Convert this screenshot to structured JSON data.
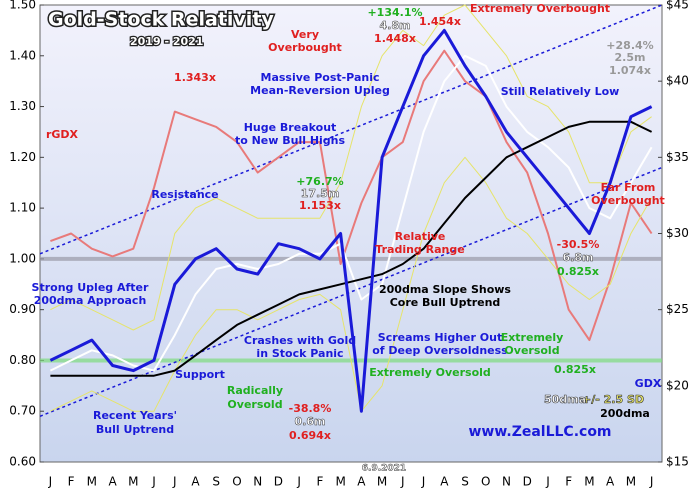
{
  "chart_data": {
    "type": "line",
    "title": "Gold-Stock Relativity",
    "subtitle": "2019 - 2021",
    "categories": [
      "J",
      "F",
      "M",
      "A",
      "M",
      "J",
      "J",
      "A",
      "S",
      "O",
      "N",
      "D",
      "J",
      "F",
      "M",
      "A",
      "M",
      "J",
      "J",
      "A",
      "S",
      "O",
      "N",
      "D",
      "J",
      "F",
      "M",
      "A",
      "M",
      "J"
    ],
    "ylim": [
      0.6,
      1.5
    ],
    "yticks": [
      {
        "value": 0.6,
        "label": "0.60"
      },
      {
        "value": 0.7,
        "label": "0.70"
      },
      {
        "value": 0.8,
        "label": "0.80"
      },
      {
        "value": 0.9,
        "label": "0.90"
      },
      {
        "value": 1.0,
        "label": "1.00"
      },
      {
        "value": 1.1,
        "label": "1.10"
      },
      {
        "value": 1.2,
        "label": "1.20"
      },
      {
        "value": 1.3,
        "label": "1.30"
      },
      {
        "value": 1.4,
        "label": "1.40"
      },
      {
        "value": 1.5,
        "label": "1.50"
      }
    ],
    "y2lim": [
      15,
      45
    ],
    "y2ticks": [
      {
        "value": 15,
        "label": "$15"
      },
      {
        "value": 20,
        "label": "$20"
      },
      {
        "value": 25,
        "label": "$25"
      },
      {
        "value": 30,
        "label": "$30"
      },
      {
        "value": 35,
        "label": "$35"
      },
      {
        "value": 40,
        "label": "$40"
      },
      {
        "value": 45,
        "label": "$45"
      }
    ],
    "series": [
      {
        "name": "GDX",
        "color": "#e87a7a",
        "axis": "y2",
        "values": [
          29.5,
          30,
          29,
          28.5,
          29,
          33,
          38,
          37.5,
          37,
          36,
          34,
          35,
          36,
          36,
          28,
          32,
          35,
          36,
          40,
          42,
          40,
          39,
          36,
          34,
          30,
          25,
          23,
          27,
          32,
          30
        ]
      },
      {
        "name": "+/- 2.5 SD",
        "color": "#e6e46a",
        "upper": [
          0.9,
          0.92,
          0.9,
          0.88,
          0.86,
          0.88,
          1.05,
          1.1,
          1.12,
          1.1,
          1.08,
          1.08,
          1.08,
          1.08,
          1.15,
          1.3,
          1.4,
          1.45,
          1.42,
          1.48,
          1.5,
          1.45,
          1.4,
          1.32,
          1.3,
          1.25,
          1.15,
          1.15,
          1.25,
          1.28
        ],
        "lower": [
          0.7,
          0.72,
          0.74,
          0.72,
          0.7,
          0.7,
          0.78,
          0.85,
          0.9,
          0.9,
          0.88,
          0.9,
          0.92,
          0.93,
          0.9,
          0.7,
          0.75,
          0.9,
          1.05,
          1.15,
          1.2,
          1.15,
          1.08,
          1.05,
          1.0,
          0.95,
          0.92,
          0.95,
          1.05,
          1.12
        ]
      },
      {
        "name": "50dma",
        "color": "#ffffff",
        "values": [
          0.78,
          0.8,
          0.82,
          0.81,
          0.79,
          0.78,
          0.85,
          0.93,
          0.98,
          0.99,
          0.98,
          0.99,
          1.01,
          1.01,
          1.03,
          0.92,
          0.95,
          1.1,
          1.25,
          1.35,
          1.4,
          1.38,
          1.3,
          1.25,
          1.22,
          1.18,
          1.1,
          1.08,
          1.15,
          1.22
        ]
      },
      {
        "name": "200dma",
        "color": "#000000",
        "values": [
          0.77,
          0.77,
          0.77,
          0.77,
          0.77,
          0.77,
          0.78,
          0.81,
          0.84,
          0.87,
          0.89,
          0.91,
          0.93,
          0.94,
          0.95,
          0.96,
          0.97,
          0.99,
          1.02,
          1.07,
          1.12,
          1.16,
          1.2,
          1.22,
          1.24,
          1.26,
          1.27,
          1.27,
          1.27,
          1.25
        ]
      },
      {
        "name": "rGDX",
        "color": "#1a1ad8",
        "values": [
          0.8,
          0.82,
          0.84,
          0.79,
          0.78,
          0.8,
          0.95,
          1.0,
          1.02,
          0.98,
          0.97,
          1.03,
          1.02,
          1.0,
          1.05,
          0.7,
          1.2,
          1.3,
          1.4,
          1.45,
          1.38,
          1.32,
          1.25,
          1.2,
          1.15,
          1.1,
          1.05,
          1.15,
          1.28,
          1.3
        ]
      }
    ],
    "trendlines": [
      {
        "name": "Resistance",
        "color": "#1a1ad8",
        "values": [
          1.01,
          1.5
        ]
      },
      {
        "name": "Support",
        "color": "#1a1ad8",
        "values": [
          0.69,
          1.18
        ]
      }
    ],
    "hlines": [
      {
        "value": 1.0,
        "color": "#9a9aa8"
      },
      {
        "value": 0.8,
        "color": "#7fdc7f"
      }
    ],
    "annotations": [
      "1.343x",
      "Very",
      "Overbought",
      "+134.1%",
      "4.8m",
      "1.448x",
      "1.454x",
      "Extremely Overbought",
      "+28.4%",
      "2.5m",
      "1.074x",
      "Still Relatively Low",
      "Massive Post-Panic",
      "Mean-Reversion Upleg",
      "Huge Breakout",
      "to New Bull Highs",
      "+76.7%",
      "17.5m",
      "1.153x",
      "Relative",
      "Trading Range",
      "-30.5%",
      "6.8m",
      "0.825x",
      "Far From",
      "Overbought",
      "Strong Upleg After",
      "200dma Approach",
      "200dma Slope Shows",
      "Core Bull Uptrend",
      "Crashes with Gold",
      "in Stock Panic",
      "Screams Higher Out",
      "of Deep Oversoldness",
      "Extremely",
      "Oversold",
      "0.825x",
      "Extremely Oversold",
      "Radically",
      "Oversold",
      "-38.8%",
      "0.6m",
      "0.694x",
      "Recent Years'",
      "Bull Uptrend",
      "www.ZealLLC.com",
      "6.9.2021"
    ]
  }
}
